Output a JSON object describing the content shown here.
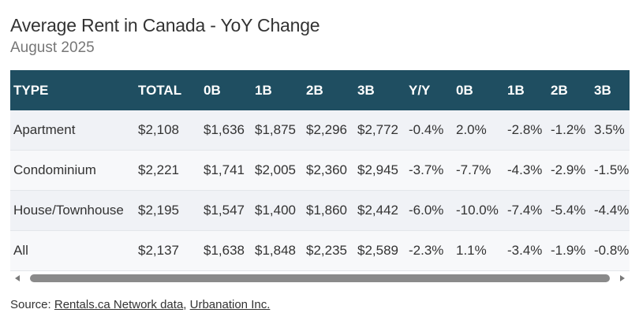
{
  "title": "Average Rent in Canada - YoY Change",
  "subtitle": "August 2025",
  "source": {
    "prefix": "Source: ",
    "link1": "Rentals.ca Network data",
    "sep": ", ",
    "link2": "Urbanation Inc."
  },
  "colors": {
    "header_bg": "#1f4e61",
    "header_text": "#ffffff",
    "row_bg": "#f0f2f6"
  },
  "chart_data": {
    "type": "table",
    "title": "Average Rent in Canada - YoY Change",
    "subtitle": "August 2025",
    "columns": [
      "TYPE",
      "TOTAL",
      "0B",
      "1B",
      "2B",
      "3B",
      "Y/Y",
      "0B",
      "1B",
      "2B",
      "3B"
    ],
    "rows": [
      [
        "Apartment",
        "$2,108",
        "$1,636",
        "$1,875",
        "$2,296",
        "$2,772",
        "-0.4%",
        "2.0%",
        "-2.8%",
        "-1.2%",
        "3.5%"
      ],
      [
        "Condominium",
        "$2,221",
        "$1,741",
        "$2,005",
        "$2,360",
        "$2,945",
        "-3.7%",
        "-7.7%",
        "-4.3%",
        "-2.9%",
        "-1.5%"
      ],
      [
        "House/Townhouse",
        "$2,195",
        "$1,547",
        "$1,400",
        "$1,860",
        "$2,442",
        "-6.0%",
        "-10.0%",
        "-7.4%",
        "-5.4%",
        "-4.4%"
      ],
      [
        "All",
        "$2,137",
        "$1,638",
        "$1,848",
        "$2,235",
        "$2,589",
        "-2.3%",
        "1.1%",
        "-3.4%",
        "-1.9%",
        "-0.8%"
      ]
    ]
  }
}
